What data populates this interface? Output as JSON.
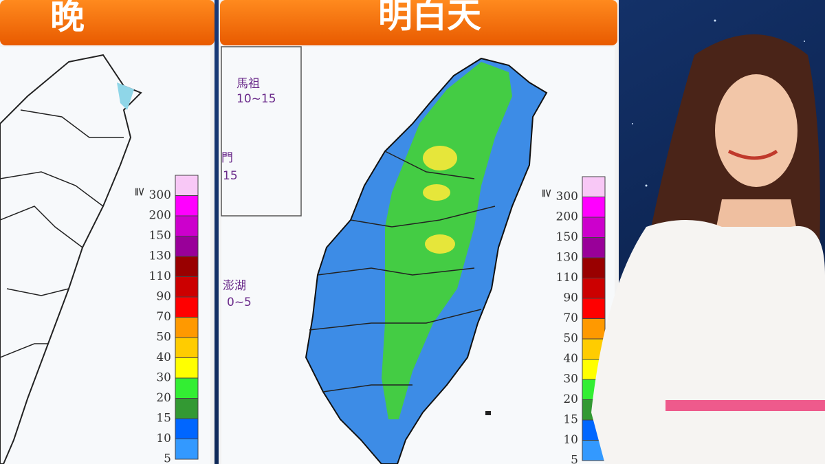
{
  "left_panel": {
    "title": "晚",
    "legend": {
      "symbol": "≧",
      "levels": [
        {
          "label": "300",
          "color": "#f8c8f6"
        },
        {
          "label": "200",
          "color": "#ff00ff"
        },
        {
          "label": "150",
          "color": "#cc00cc"
        },
        {
          "label": "130",
          "color": "#990099"
        },
        {
          "label": "110",
          "color": "#990000"
        },
        {
          "label": "90",
          "color": "#cc0000"
        },
        {
          "label": "70",
          "color": "#ff0000"
        },
        {
          "label": "50",
          "color": "#ff9900"
        },
        {
          "label": "40",
          "color": "#ffcc00"
        },
        {
          "label": "30",
          "color": "#ffff00"
        },
        {
          "label": "20",
          "color": "#33ee33"
        },
        {
          "label": "15",
          "color": "#339933"
        },
        {
          "label": "10",
          "color": "#0066ff"
        },
        {
          "label": "5",
          "color": "#3399ff"
        }
      ]
    }
  },
  "center_panel": {
    "title": "明白天",
    "islands": [
      {
        "name": "馬祖",
        "range": "10~15"
      },
      {
        "name": "門",
        "range": "15"
      },
      {
        "name": "澎湖",
        "range": "0~5"
      }
    ],
    "legend": {
      "symbol": "≧",
      "levels": [
        {
          "label": "300",
          "color": "#f8c8f6"
        },
        {
          "label": "200",
          "color": "#ff00ff"
        },
        {
          "label": "150",
          "color": "#cc00cc"
        },
        {
          "label": "130",
          "color": "#990099"
        },
        {
          "label": "110",
          "color": "#990000"
        },
        {
          "label": "90",
          "color": "#cc0000"
        },
        {
          "label": "70",
          "color": "#ff0000"
        },
        {
          "label": "50",
          "color": "#ff9900"
        },
        {
          "label": "40",
          "color": "#ffcc00"
        },
        {
          "label": "30",
          "color": "#ffff00"
        },
        {
          "label": "20",
          "color": "#33ee33"
        },
        {
          "label": "15",
          "color": "#339933"
        },
        {
          "label": "10",
          "color": "#0066ff"
        },
        {
          "label": "5",
          "color": "#3399ff"
        }
      ]
    }
  }
}
